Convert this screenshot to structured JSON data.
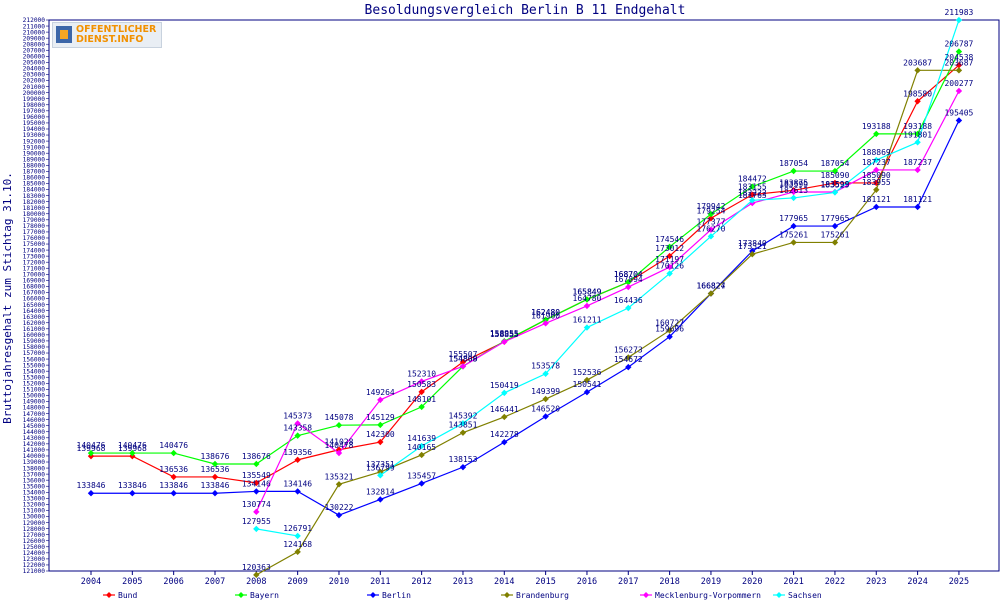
{
  "logo": {
    "line1": "OFFENTLICHER",
    "line2": "DIENST.INFO"
  },
  "chart_data": {
    "type": "line",
    "title": "Besoldungsvergleich Berlin B 11 Endgehalt",
    "xlabel": "",
    "ylabel": "Bruttojahresgehalt zum Stichtag 31.10.",
    "ylim": [
      121000,
      212000
    ],
    "ytick_step": 1000,
    "grid": false,
    "legend_position": "bottom",
    "categories": [
      "2004",
      "2005",
      "2006",
      "2007",
      "2008",
      "2009",
      "2010",
      "2011",
      "2012",
      "2013",
      "2014",
      "2015",
      "2016",
      "2017",
      "2018",
      "2019",
      "2020",
      "2021",
      "2022",
      "2023",
      "2024",
      "2025"
    ],
    "series": [
      {
        "name": "Bund",
        "color": "#ff0000",
        "values": [
          139968,
          139968,
          136536,
          136536,
          135549,
          139356,
          141028,
          142300,
          150583,
          155507,
          158855,
          162480,
          165849,
          168704,
          173012,
          179254,
          183155,
          183875,
          185090,
          185090,
          198580,
          204538
        ]
      },
      {
        "name": "Bayern",
        "color": "#00ff00",
        "values": [
          140476,
          140476,
          140476,
          138676,
          138676,
          143358,
          145078,
          145129,
          148101,
          154809,
          158955,
          162480,
          165849,
          168704,
          174546,
          179942,
          184472,
          187054,
          187054,
          193188,
          193188,
          206787
        ]
      },
      {
        "name": "Berlin",
        "color": "#0000ff",
        "values": [
          133846,
          133846,
          133846,
          133846,
          134146,
          134146,
          130222,
          132814,
          135457,
          138153,
          142278,
          146520,
          150541,
          154672,
          159696,
          166824,
          173840,
          177965,
          177965,
          181121,
          181121,
          195405
        ]
      },
      {
        "name": "Brandenburg",
        "color": "#808000",
        "values": [
          null,
          null,
          null,
          null,
          120363,
          124168,
          135321,
          137351,
          140165,
          143851,
          146441,
          149399,
          152536,
          156273,
          160727,
          166827,
          173321,
          175261,
          175261,
          183955,
          203687,
          203687
        ]
      },
      {
        "name": "Mecklenburg-Vorpommern",
        "color": "#ff00ff",
        "values": [
          null,
          null,
          null,
          null,
          130774,
          145373,
          140478,
          149264,
          152310,
          154808,
          158855,
          161900,
          164780,
          167894,
          171197,
          177377,
          181763,
          183599,
          183599,
          187237,
          187237,
          200277
        ]
      },
      {
        "name": "Sachsen",
        "color": "#00ffff",
        "values": [
          null,
          null,
          null,
          null,
          127955,
          126791,
          null,
          136799,
          141639,
          145392,
          150419,
          153578,
          161211,
          164436,
          170126,
          176270,
          182222,
          182613,
          183525,
          188869,
          191801,
          211983
        ]
      }
    ]
  }
}
